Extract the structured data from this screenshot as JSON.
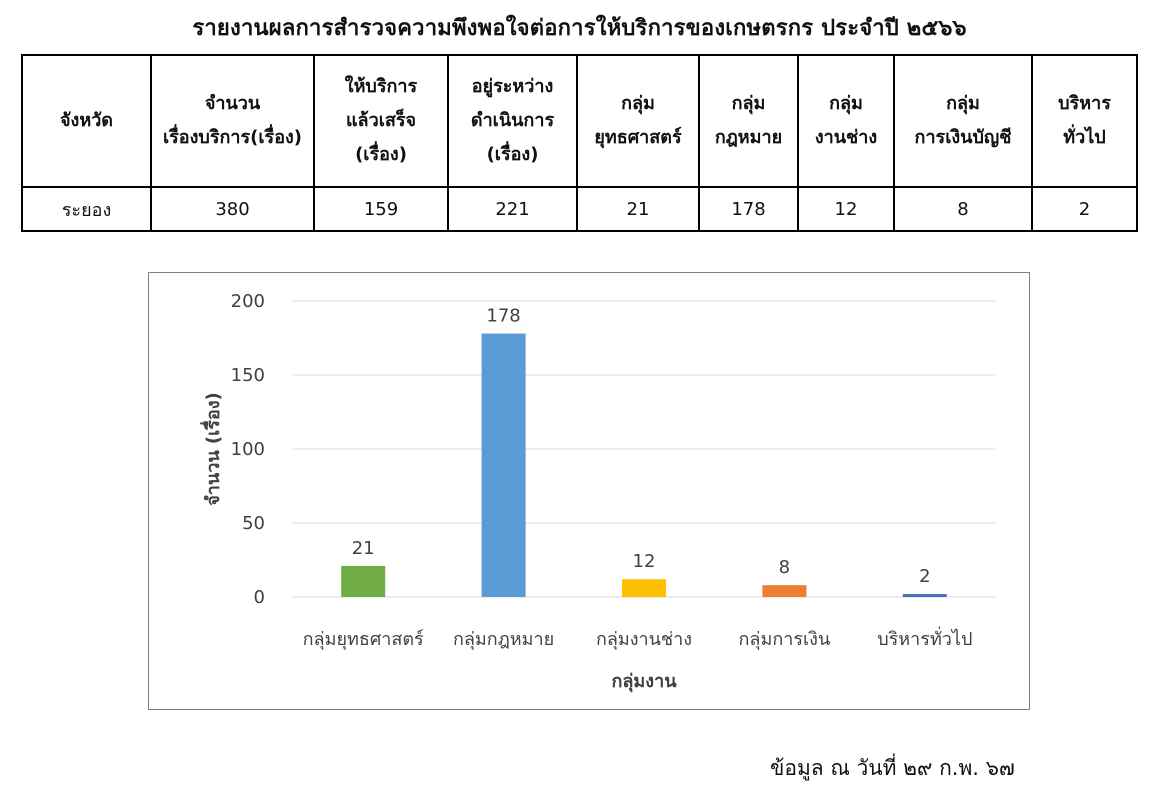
{
  "title": "รายงานผลการสำรวจความพึงพอใจต่อการให้บริการของเกษตรกร ประจำปี ๒๕๖๖",
  "table": {
    "headers": [
      [
        "จังหวัด"
      ],
      [
        "จำนวน",
        "เรื่องบริการ(เรื่อง)"
      ],
      [
        "ให้บริการ",
        "แล้วเสร็จ",
        "(เรื่อง)"
      ],
      [
        "อยู่ระหว่าง",
        "ดำเนินการ",
        "(เรื่อง)"
      ],
      [
        "กลุ่ม",
        "ยุทธศาสตร์"
      ],
      [
        "กลุ่ม",
        "กฎหมาย"
      ],
      [
        "กลุ่ม",
        "งานช่าง"
      ],
      [
        "กลุ่ม",
        "การเงินบัญชี"
      ],
      [
        "บริหาร",
        "ทั่วไป"
      ]
    ],
    "rows": [
      [
        "ระยอง",
        "380",
        "159",
        "221",
        "21",
        "178",
        "12",
        "8",
        "2"
      ]
    ]
  },
  "chart_data": {
    "type": "bar",
    "categories": [
      "กลุ่มยุทธศาสตร์",
      "กลุ่มกฎหมาย",
      "กลุ่มงานช่าง",
      "กลุ่มการเงิน",
      "บริหารทั่วไป"
    ],
    "values": [
      21,
      178,
      12,
      8,
      2
    ],
    "bar_colors": [
      "#70ad47",
      "#5b9bd5",
      "#ffc000",
      "#ed7d31",
      "#4472c4"
    ],
    "title": "",
    "xlabel": "กลุ่มงาน",
    "ylabel": "จำนวน (เรื่อง)",
    "ylim": [
      0,
      200
    ],
    "yticks": [
      0,
      50,
      100,
      150,
      200
    ],
    "grid": true,
    "data_labels": true
  },
  "footer": "ข้อมูล ณ วันที่ ๒๙ ก.พ. ๖๗"
}
